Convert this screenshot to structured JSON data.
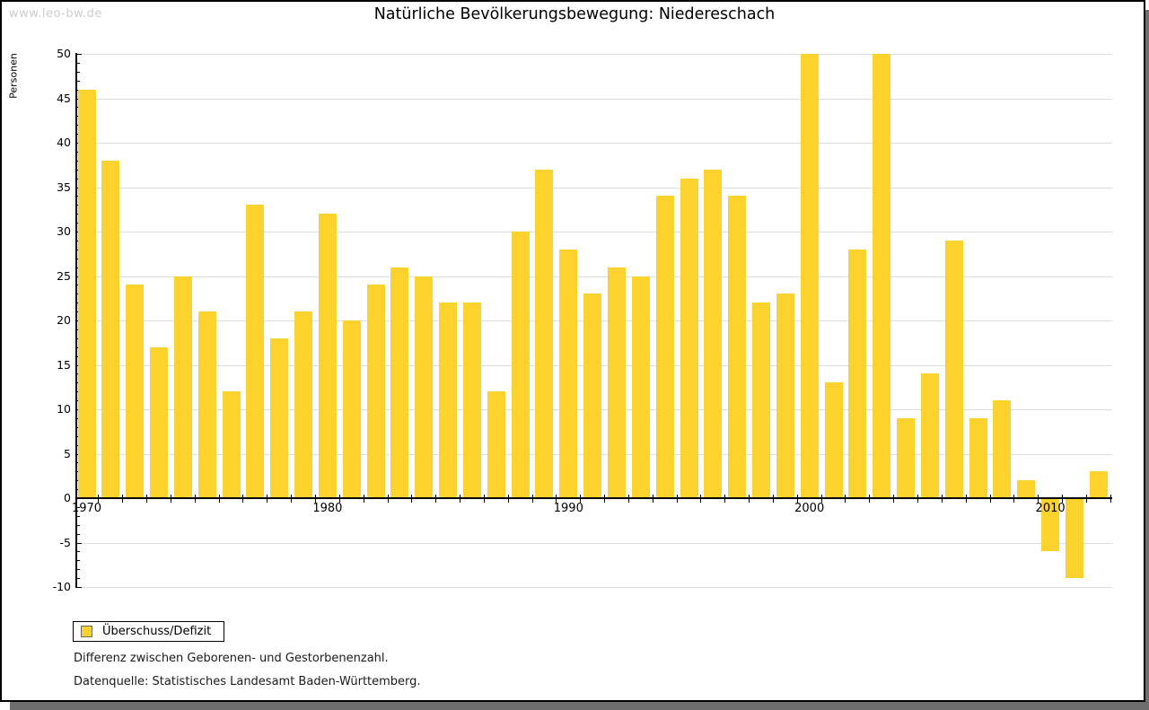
{
  "watermark": "www.leo-bw.de",
  "title": "Natürliche Bevölkerungsbewegung: Niedereschach",
  "ylabel": "Personen",
  "legend": {
    "label": "Überschuss/Defizit"
  },
  "notes": [
    "Differenz zwischen Geborenen- und Gestorbenenzahl.",
    "Datenquelle: Statistisches Landesamt Baden-Württemberg."
  ],
  "colors": {
    "bar": "#fcd32d",
    "grid": "#dcdcdc",
    "axis": "#000000",
    "shadow": "#6e6e6e",
    "watermark": "#cccccc"
  },
  "chart_data": {
    "type": "bar",
    "title": "Natürliche Bevölkerungsbewegung: Niedereschach",
    "xlabel": "",
    "ylabel": "Personen",
    "x": [
      1970,
      1971,
      1972,
      1973,
      1974,
      1975,
      1976,
      1977,
      1978,
      1979,
      1980,
      1981,
      1982,
      1983,
      1984,
      1985,
      1986,
      1987,
      1988,
      1989,
      1990,
      1991,
      1992,
      1993,
      1994,
      1995,
      1996,
      1997,
      1998,
      1999,
      2000,
      2001,
      2002,
      2003,
      2004,
      2005,
      2006,
      2007,
      2008,
      2009,
      2010,
      2011,
      2012
    ],
    "series": [
      {
        "name": "Überschuss/Defizit",
        "values": [
          46,
          38,
          24,
          17,
          25,
          21,
          12,
          33,
          18,
          21,
          32,
          20,
          24,
          26,
          25,
          22,
          22,
          12,
          30,
          37,
          28,
          23,
          26,
          25,
          34,
          36,
          37,
          34,
          22,
          23,
          50,
          13,
          28,
          50,
          9,
          14,
          29,
          9,
          11,
          2,
          -6,
          -9,
          3
        ]
      }
    ],
    "ylim": [
      -10,
      50
    ],
    "ytick_step": 5,
    "ytick_minor_step": 1,
    "xticks": [
      1970,
      1980,
      1990,
      2000,
      2010
    ],
    "grid": true,
    "legend_position": "bottom-left",
    "bar_color": "#fcd32d"
  }
}
